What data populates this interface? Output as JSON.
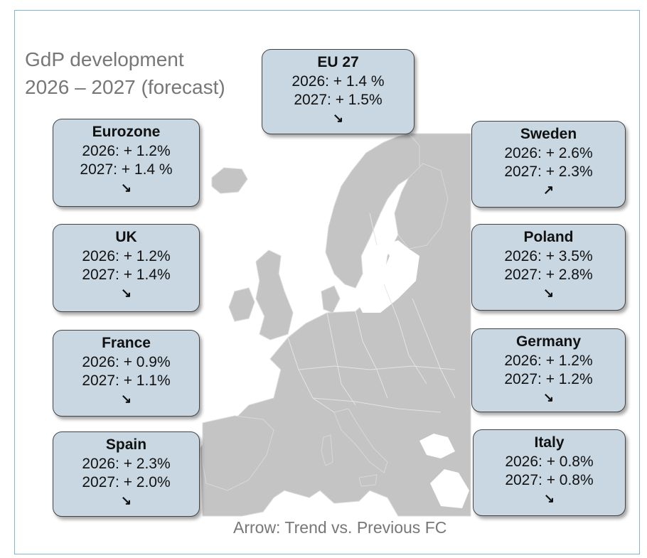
{
  "title_line1": "GdP development",
  "title_line2": "2026 – 2027 (forecast)",
  "footer": "Arrow: Trend vs. Previous FC",
  "regions": {
    "eu27": {
      "name": "EU 27",
      "y2026": "2026:  + 1.4 %",
      "y2027": "2027: + 1.5%",
      "trend": "↘"
    },
    "eurozone": {
      "name": "Eurozone",
      "y2026": "2026:  + 1.2%",
      "y2027": "2027:  + 1.4 %",
      "trend": "↘"
    },
    "uk": {
      "name": "UK",
      "y2026": "2026:  + 1.2%",
      "y2027": "2027: + 1.4%",
      "trend": "↘"
    },
    "france": {
      "name": "France",
      "y2026": "2026:  + 0.9%",
      "y2027": "2027: + 1.1%",
      "trend": "↘"
    },
    "spain": {
      "name": "Spain",
      "y2026": "2026:  + 2.3%",
      "y2027": "2027: + 2.0%",
      "trend": "↘"
    },
    "sweden": {
      "name": "Sweden",
      "y2026": "2026:  + 2.6%",
      "y2027": "2027: + 2.3%",
      "trend": "↗"
    },
    "poland": {
      "name": "Poland",
      "y2026": "2026:  + 3.5%",
      "y2027": "2027: + 2.8%",
      "trend": "↘"
    },
    "germany": {
      "name": "Germany",
      "y2026": "2026:  + 1.2%",
      "y2027": "2027: + 1.2%",
      "trend": "↘"
    },
    "italy": {
      "name": "Italy",
      "y2026": "2026:  + 0.8%",
      "y2027": "2027: + 0.8%",
      "trend": "↘"
    }
  },
  "colors": {
    "box_fill": "#c8d7e2",
    "land": "#c4c4c4",
    "sea": "#ffffff",
    "frame": "#7fb5cf",
    "title_text": "#777777"
  }
}
